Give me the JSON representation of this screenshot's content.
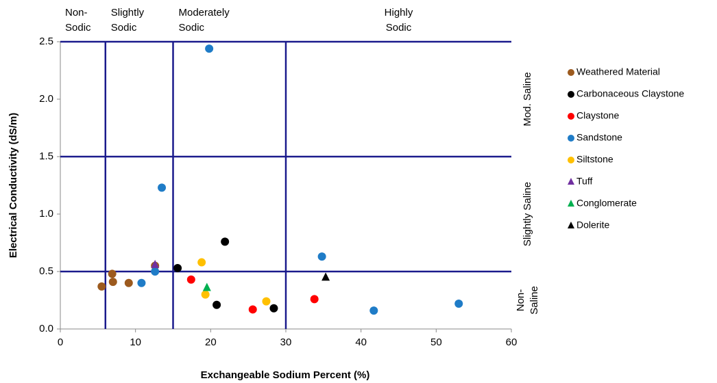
{
  "chart_data": {
    "type": "scatter",
    "x_label": "Exchangeable Sodium Percent (%)",
    "y_label": "Electrical Conductivity (dS/m)",
    "xlim": [
      0,
      60
    ],
    "ylim": [
      0,
      2.5
    ],
    "xticks": [
      0,
      10,
      20,
      30,
      40,
      50,
      60
    ],
    "yticks": [
      {
        "value": 0,
        "label": "0.0"
      },
      0.5,
      {
        "value": 1,
        "label": "1.0"
      },
      1.5,
      {
        "value": 2,
        "label": "2.0"
      },
      2.5
    ],
    "x_thresholds": [
      6,
      15,
      30
    ],
    "y_thresholds": [
      0.5,
      1.5,
      2.5
    ],
    "x_zones": [
      [
        "Non-",
        "Sodic"
      ],
      [
        "Slightly",
        "Sodic"
      ],
      [
        "Moderately",
        "Sodic"
      ],
      [
        "Highly",
        "Sodic"
      ]
    ],
    "y_zones": [
      [
        "Non-",
        "Saline"
      ],
      [
        "Slightly Saline"
      ],
      [
        "Mod. Saline"
      ]
    ],
    "legend_position": "right",
    "series": [
      {
        "name": "Weathered Material",
        "color": "#9c5a1e",
        "marker": "circle",
        "x": [
          5.5,
          6.9,
          7.0,
          9.1,
          12.6
        ],
        "values": [
          0.37,
          0.48,
          0.41,
          0.4,
          0.55
        ]
      },
      {
        "name": "Carbonaceous Claystone",
        "color": "#000000",
        "marker": "circle",
        "x": [
          15.6,
          21.9,
          20.8,
          28.4
        ],
        "values": [
          0.53,
          0.76,
          0.21,
          0.18
        ]
      },
      {
        "name": "Claystone",
        "color": "#ff0000",
        "marker": "circle",
        "x": [
          17.4,
          25.6,
          33.8
        ],
        "values": [
          0.43,
          0.17,
          0.26
        ]
      },
      {
        "name": "Sandstone",
        "color": "#1f7cc7",
        "marker": "circle",
        "x": [
          19.8,
          13.5,
          10.8,
          12.6,
          34.8,
          41.7,
          53.0
        ],
        "values": [
          2.44,
          1.23,
          0.4,
          0.5,
          0.63,
          0.16,
          0.22
        ]
      },
      {
        "name": "Siltstone",
        "color": "#ffc000",
        "marker": "circle",
        "x": [
          18.8,
          19.3,
          27.4
        ],
        "values": [
          0.58,
          0.3,
          0.24
        ]
      },
      {
        "name": "Tuff",
        "color": "#7030a0",
        "marker": "triangle",
        "x": [
          12.6
        ],
        "values": [
          0.56
        ]
      },
      {
        "name": "Conglomerate",
        "color": "#00b050",
        "marker": "triangle",
        "x": [
          19.5
        ],
        "values": [
          0.36
        ]
      },
      {
        "name": "Dolerite",
        "color": "#000000",
        "marker": "triangle",
        "x": [
          35.3
        ],
        "values": [
          0.45
        ]
      }
    ]
  }
}
